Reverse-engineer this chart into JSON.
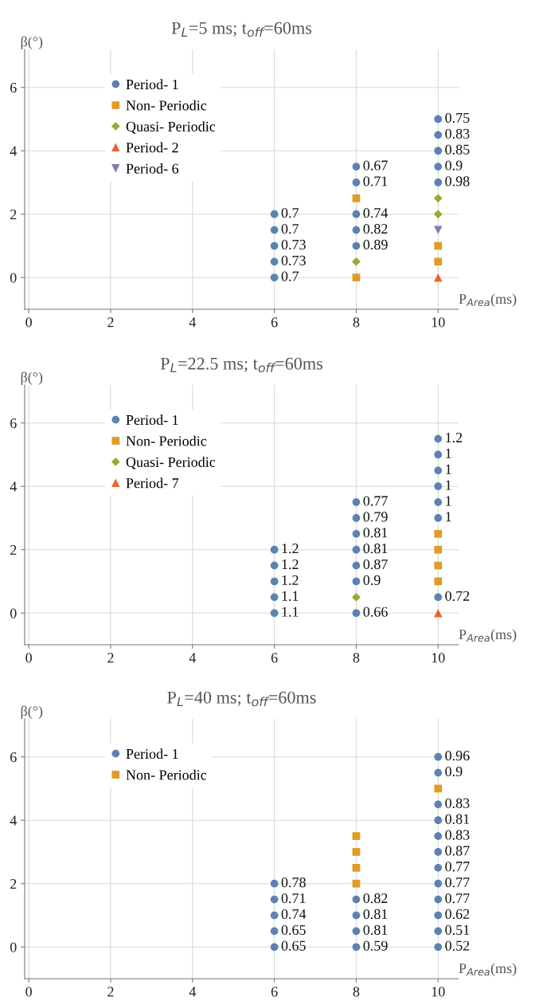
{
  "chart_data": [
    {
      "type": "scatter",
      "title": "P$_{L}$=5 ms; t$_{off}$=60ms",
      "xlabel": "P$_{Area}$(ms)",
      "ylabel": "β(°)",
      "xlim": [
        -0.1,
        10.5
      ],
      "ylim": [
        -1,
        7.2
      ],
      "xticks": [
        0,
        2,
        4,
        6,
        8,
        10
      ],
      "yticks": [
        0,
        2,
        4,
        6
      ],
      "grid": true,
      "legend": "top left",
      "series": [
        {
          "name": "Period- 1",
          "color": "#5e81b5",
          "marker": "circle",
          "x": [
            6,
            6,
            6,
            6,
            6,
            8,
            8,
            8,
            8,
            8,
            10,
            10,
            10,
            10,
            10
          ],
          "values": [
            0,
            0.5,
            1,
            1.5,
            2,
            1,
            1.5,
            2,
            3,
            3.5,
            3,
            3.5,
            4,
            4.5,
            5
          ]
        },
        {
          "name": "Non- Periodic",
          "color": "#e19c24",
          "marker": "square",
          "x": [
            8,
            8,
            10,
            10
          ],
          "values": [
            0,
            2.5,
            0.5,
            1
          ]
        },
        {
          "name": "Quasi- Periodic",
          "color": "#8fb032",
          "marker": "diamond",
          "x": [
            8,
            10,
            10
          ],
          "values": [
            0.5,
            2,
            2.5
          ]
        },
        {
          "name": "Period- 2",
          "color": "#eb6235",
          "marker": "triangle",
          "x": [
            10
          ],
          "values": [
            0
          ]
        },
        {
          "name": "Period- 6",
          "color": "#8778b3",
          "marker": "triangle_down",
          "x": [
            10
          ],
          "values": [
            1.5
          ]
        }
      ],
      "annotations": [
        {
          "text": "0.7",
          "x": 6,
          "y": 0
        },
        {
          "text": "0.73",
          "x": 6,
          "y": 0.5
        },
        {
          "text": "0.73",
          "x": 6,
          "y": 1
        },
        {
          "text": "0.7",
          "x": 6,
          "y": 1.5
        },
        {
          "text": "0.7",
          "x": 6,
          "y": 2
        },
        {
          "text": "0.89",
          "x": 8,
          "y": 1
        },
        {
          "text": "0.82",
          "x": 8,
          "y": 1.5
        },
        {
          "text": "0.74",
          "x": 8,
          "y": 2
        },
        {
          "text": "0.71",
          "x": 8,
          "y": 3
        },
        {
          "text": "0.67",
          "x": 8,
          "y": 3.5
        },
        {
          "text": "0.98",
          "x": 10,
          "y": 3
        },
        {
          "text": "0.9",
          "x": 10,
          "y": 3.5
        },
        {
          "text": "0.85",
          "x": 10,
          "y": 4
        },
        {
          "text": "0.83",
          "x": 10,
          "y": 4.5
        },
        {
          "text": "0.75",
          "x": 10,
          "y": 5
        }
      ]
    },
    {
      "type": "scatter",
      "title": "P$_{L}$=22.5 ms; t$_{off}$=60ms",
      "xlabel": "P$_{Area}$(ms)",
      "ylabel": "β(°)",
      "xlim": [
        -0.1,
        10.5
      ],
      "ylim": [
        -1,
        7.2
      ],
      "xticks": [
        0,
        2,
        4,
        6,
        8,
        10
      ],
      "yticks": [
        0,
        2,
        4,
        6
      ],
      "grid": true,
      "legend": "top left",
      "series": [
        {
          "name": "Period- 1",
          "color": "#5e81b5",
          "marker": "circle",
          "x": [
            6,
            6,
            6,
            6,
            6,
            8,
            8,
            8,
            8,
            8,
            8,
            8,
            10,
            10,
            10,
            10,
            10,
            10,
            10
          ],
          "values": [
            0,
            0.5,
            1,
            1.5,
            2,
            0,
            1,
            1.5,
            2,
            2.5,
            3,
            3.5,
            0.5,
            3,
            3.5,
            4,
            4.5,
            5,
            5.5
          ]
        },
        {
          "name": "Non- Periodic",
          "color": "#e19c24",
          "marker": "square",
          "x": [
            10,
            10,
            10,
            10
          ],
          "values": [
            1,
            1.5,
            2,
            2.5
          ]
        },
        {
          "name": "Quasi- Periodic",
          "color": "#8fb032",
          "marker": "diamond",
          "x": [
            8
          ],
          "values": [
            0.5
          ]
        },
        {
          "name": "Period- 7",
          "color": "#eb6235",
          "marker": "triangle",
          "x": [
            10
          ],
          "values": [
            0
          ]
        }
      ],
      "annotations": [
        {
          "text": "1.1",
          "x": 6,
          "y": 0
        },
        {
          "text": "1.1",
          "x": 6,
          "y": 0.5
        },
        {
          "text": "1.2",
          "x": 6,
          "y": 1
        },
        {
          "text": "1.2",
          "x": 6,
          "y": 1.5
        },
        {
          "text": "1.2",
          "x": 6,
          "y": 2
        },
        {
          "text": "0.66",
          "x": 8,
          "y": 0
        },
        {
          "text": "0.9",
          "x": 8,
          "y": 1
        },
        {
          "text": "0.87",
          "x": 8,
          "y": 1.5
        },
        {
          "text": "0.81",
          "x": 8,
          "y": 2
        },
        {
          "text": "0.81",
          "x": 8,
          "y": 2.5
        },
        {
          "text": "0.79",
          "x": 8,
          "y": 3
        },
        {
          "text": "0.77",
          "x": 8,
          "y": 3.5
        },
        {
          "text": "0.72",
          "x": 10,
          "y": 0.5
        },
        {
          "text": "1",
          "x": 10,
          "y": 3
        },
        {
          "text": "1",
          "x": 10,
          "y": 3.5
        },
        {
          "text": "1",
          "x": 10,
          "y": 4
        },
        {
          "text": "1",
          "x": 10,
          "y": 4.5
        },
        {
          "text": "1",
          "x": 10,
          "y": 5
        },
        {
          "text": "1.2",
          "x": 10,
          "y": 5.5
        }
      ]
    },
    {
      "type": "scatter",
      "title": "P$_{L}$=40 ms; t$_{off}$=60ms",
      "xlabel": "P$_{Area}$(ms)",
      "ylabel": "β(°)",
      "xlim": [
        -0.1,
        10.5
      ],
      "ylim": [
        -1,
        7.2
      ],
      "xticks": [
        0,
        2,
        4,
        6,
        8,
        10
      ],
      "yticks": [
        0,
        2,
        4,
        6
      ],
      "grid": true,
      "legend": "top left",
      "series": [
        {
          "name": "Period- 1",
          "color": "#5e81b5",
          "marker": "circle",
          "x": [
            6,
            6,
            6,
            6,
            6,
            8,
            8,
            8,
            8,
            10,
            10,
            10,
            10,
            10,
            10,
            10,
            10,
            10,
            10,
            10,
            10
          ],
          "values": [
            0,
            0.5,
            1,
            1.5,
            2,
            0,
            0.5,
            1,
            1.5,
            0,
            0.5,
            1,
            1.5,
            2,
            2.5,
            3,
            3.5,
            4,
            4.5,
            5.5,
            6
          ]
        },
        {
          "name": "Non- Periodic",
          "color": "#e19c24",
          "marker": "square",
          "x": [
            8,
            8,
            8,
            8,
            10
          ],
          "values": [
            2,
            2.5,
            3,
            3.5,
            5
          ]
        }
      ],
      "annotations": [
        {
          "text": "0.65",
          "x": 6,
          "y": 0
        },
        {
          "text": "0.65",
          "x": 6,
          "y": 0.5
        },
        {
          "text": "0.74",
          "x": 6,
          "y": 1
        },
        {
          "text": "0.71",
          "x": 6,
          "y": 1.5
        },
        {
          "text": "0.78",
          "x": 6,
          "y": 2
        },
        {
          "text": "0.59",
          "x": 8,
          "y": 0
        },
        {
          "text": "0.81",
          "x": 8,
          "y": 0.5
        },
        {
          "text": "0.81",
          "x": 8,
          "y": 1
        },
        {
          "text": "0.82",
          "x": 8,
          "y": 1.5
        },
        {
          "text": "0.52",
          "x": 10,
          "y": 0
        },
        {
          "text": "0.51",
          "x": 10,
          "y": 0.5
        },
        {
          "text": "0.62",
          "x": 10,
          "y": 1
        },
        {
          "text": "0.77",
          "x": 10,
          "y": 1.5
        },
        {
          "text": "0.77",
          "x": 10,
          "y": 2
        },
        {
          "text": "0.77",
          "x": 10,
          "y": 2.5
        },
        {
          "text": "0.87",
          "x": 10,
          "y": 3
        },
        {
          "text": "0.83",
          "x": 10,
          "y": 3.5
        },
        {
          "text": "0.81",
          "x": 10,
          "y": 4
        },
        {
          "text": "0.83",
          "x": 10,
          "y": 4.5
        },
        {
          "text": "0.9",
          "x": 10,
          "y": 5.5
        },
        {
          "text": "0.96",
          "x": 10,
          "y": 6
        }
      ]
    }
  ]
}
